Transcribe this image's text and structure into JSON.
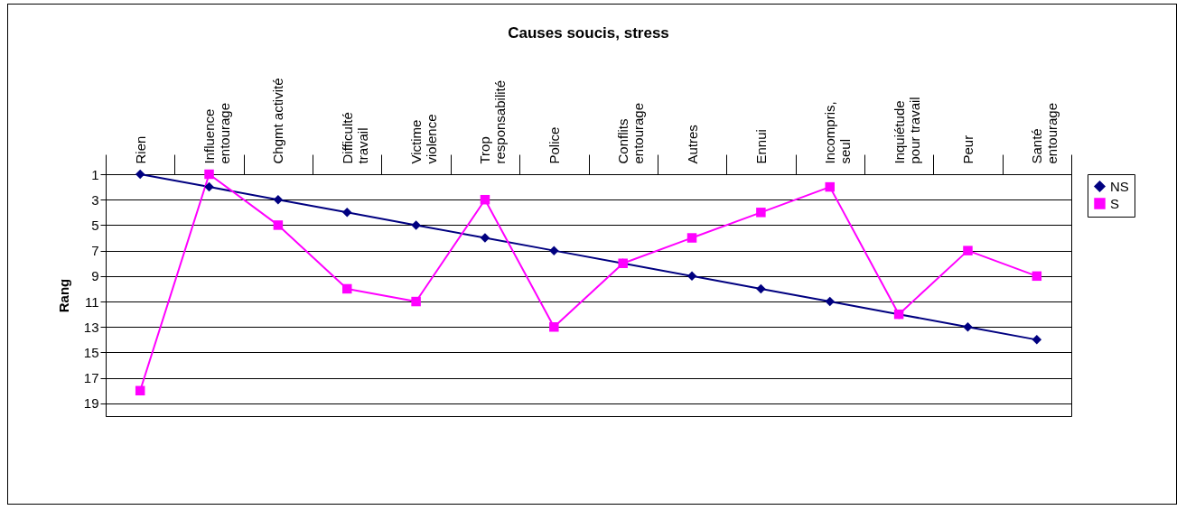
{
  "chart_data": {
    "type": "line",
    "title": "Causes soucis, stress",
    "ylabel": "Rang",
    "categories": [
      "Rien",
      "Influence\nentourage",
      "Chgmt activité",
      "Difficulté\ntravail",
      "Victime\nviolence",
      "Trop\nresponsabilité",
      "Police",
      "Conflits\nentourage",
      "Autres",
      "Ennui",
      "Incompris,\nseul",
      "Inquiétude\npour travail",
      "Peur",
      "Santé\nentourage"
    ],
    "series": [
      {
        "name": "NS",
        "color": "#000080",
        "marker": "diamond",
        "values": [
          1,
          2,
          3,
          4,
          5,
          6,
          7,
          8,
          9,
          10,
          11,
          12,
          13,
          14
        ]
      },
      {
        "name": "S",
        "color": "#ff00ff",
        "marker": "square",
        "values": [
          18,
          1,
          5,
          10,
          11,
          3,
          13,
          8,
          6,
          4,
          2,
          12,
          7,
          9
        ]
      }
    ],
    "ylim": [
      20,
      1
    ],
    "yticks": [
      1,
      3,
      5,
      7,
      9,
      11,
      13,
      15,
      17,
      19
    ],
    "grid": "y",
    "legend": "right"
  }
}
